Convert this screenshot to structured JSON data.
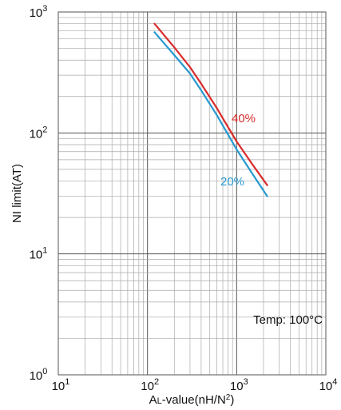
{
  "chart_data": {
    "type": "line",
    "x_scale": "log",
    "y_scale": "log",
    "xlim": [
      10,
      10000
    ],
    "ylim": [
      1,
      1000
    ],
    "grid": true,
    "xlabel": {
      "prefix": "A",
      "sub": "L",
      "body": "-value(nH/N",
      "sup": "2",
      "suffix": ")"
    },
    "ylabel": "NI limit(AT)",
    "x_ticks": [
      {
        "base": "10",
        "exp": "1",
        "value": 10
      },
      {
        "base": "10",
        "exp": "2",
        "value": 100
      },
      {
        "base": "10",
        "exp": "3",
        "value": 1000
      },
      {
        "base": "10",
        "exp": "4",
        "value": 10000
      }
    ],
    "y_ticks": [
      {
        "base": "10",
        "exp": "0",
        "value": 1
      },
      {
        "base": "10",
        "exp": "1",
        "value": 10
      },
      {
        "base": "10",
        "exp": "2",
        "value": 100
      },
      {
        "base": "10",
        "exp": "3",
        "value": 1000
      }
    ],
    "series": [
      {
        "name": "40%",
        "color": "#d92b2b",
        "x": [
          120,
          200,
          300,
          400,
          600,
          800,
          1000,
          1500,
          2200
        ],
        "y": [
          800,
          510,
          350,
          255,
          160,
          112,
          85,
          55,
          37
        ]
      },
      {
        "name": "20%",
        "color": "#2899d0",
        "x": [
          120,
          200,
          300,
          400,
          600,
          800,
          1000,
          1500,
          2200
        ],
        "y": [
          680,
          440,
          310,
          225,
          140,
          97,
          73,
          46,
          30
        ]
      }
    ],
    "annotations": [
      {
        "text": "Temp: 100°C",
        "position": "bottom-right"
      }
    ]
  }
}
